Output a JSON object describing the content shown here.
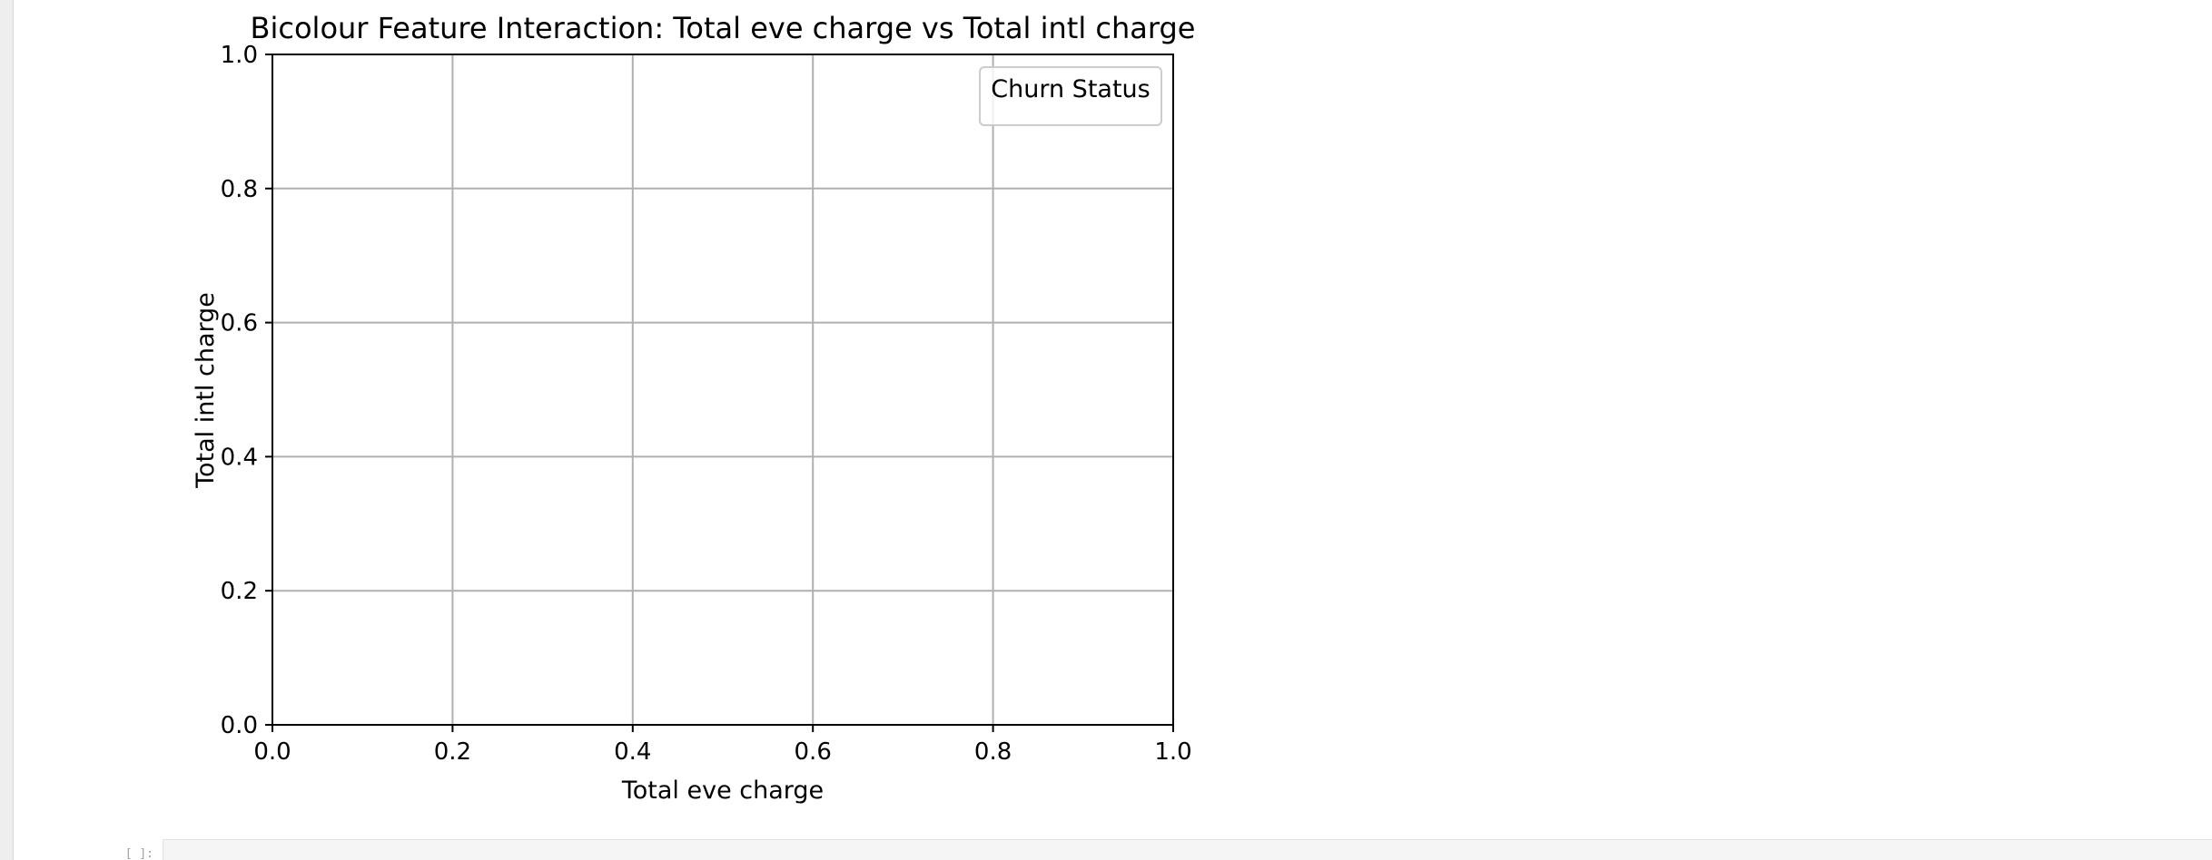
{
  "chart_data": {
    "type": "scatter",
    "title": "Bicolour Feature Interaction: Total eve charge vs Total intl charge",
    "xlabel": "Total eve charge",
    "ylabel": "Total intl charge",
    "xlim": [
      0.0,
      1.0
    ],
    "ylim": [
      0.0,
      1.0
    ],
    "xticks": [
      "0.0",
      "0.2",
      "0.4",
      "0.6",
      "0.8",
      "1.0"
    ],
    "yticks": [
      "0.0",
      "0.2",
      "0.4",
      "0.6",
      "0.8",
      "1.0"
    ],
    "grid": true,
    "legend": {
      "title": "Churn Status",
      "placement": "top-right",
      "entries": []
    },
    "series": []
  },
  "notebook": {
    "next_cell_prompt": "[ ]:"
  },
  "colors": {
    "grid": "#b0b0b0",
    "axis": "#000000",
    "legend_border": "#cccccc"
  }
}
